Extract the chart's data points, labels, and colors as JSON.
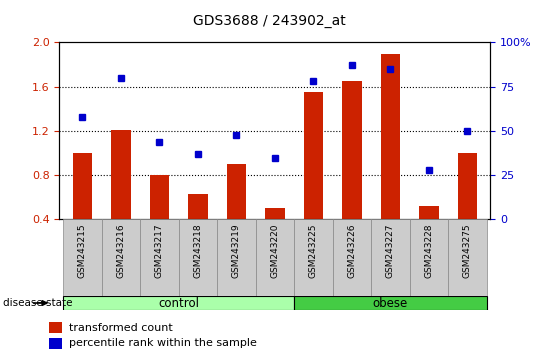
{
  "title": "GDS3688 / 243902_at",
  "samples": [
    "GSM243215",
    "GSM243216",
    "GSM243217",
    "GSM243218",
    "GSM243219",
    "GSM243220",
    "GSM243225",
    "GSM243226",
    "GSM243227",
    "GSM243228",
    "GSM243275"
  ],
  "transformed_count": [
    1.0,
    1.21,
    0.8,
    0.63,
    0.9,
    0.5,
    1.55,
    1.65,
    1.9,
    0.52,
    1.0
  ],
  "percentile_rank": [
    58,
    80,
    44,
    37,
    48,
    35,
    78,
    87,
    85,
    28,
    50
  ],
  "groups": [
    "control",
    "control",
    "control",
    "control",
    "control",
    "control",
    "obese",
    "obese",
    "obese",
    "obese",
    "obese"
  ],
  "n_control": 6,
  "n_obese": 5,
  "ylim_left": [
    0.4,
    2.0
  ],
  "ylim_right": [
    0,
    100
  ],
  "yticks_left": [
    0.4,
    0.8,
    1.2,
    1.6,
    2.0
  ],
  "yticks_right": [
    0,
    25,
    50,
    75,
    100
  ],
  "bar_color": "#cc2200",
  "dot_color": "#0000cc",
  "control_color": "#aaffaa",
  "obese_color": "#44cc44",
  "tick_label_color_left": "#cc2200",
  "tick_label_color_right": "#0000cc",
  "xticklabel_bg": "#cccccc",
  "bar_bottom": 0.4,
  "legend_items": [
    "transformed count",
    "percentile rank within the sample"
  ],
  "disease_state_label": "disease state"
}
